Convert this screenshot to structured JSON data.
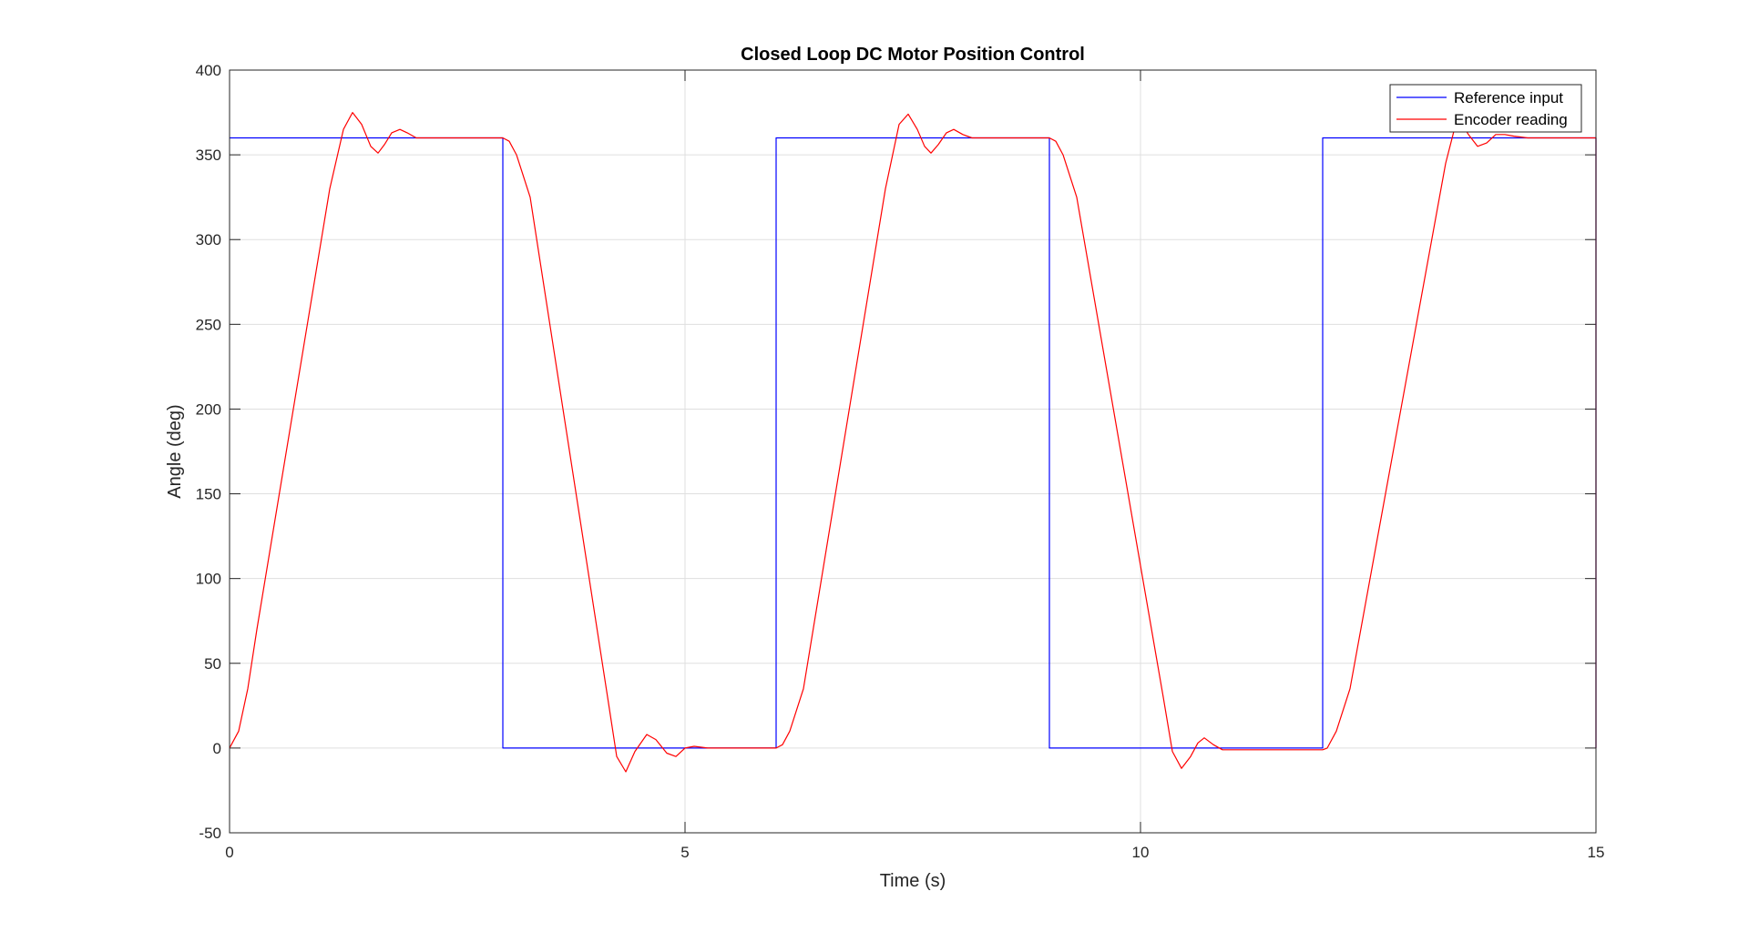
{
  "chart_data": {
    "type": "line",
    "title": "Closed Loop DC Motor Position Control",
    "xlabel": "Time (s)",
    "ylabel": "Angle (deg)",
    "xlim": [
      0,
      15
    ],
    "ylim": [
      -50,
      400
    ],
    "xticks": [
      0,
      5,
      10,
      15
    ],
    "yticks": [
      -50,
      0,
      50,
      100,
      150,
      200,
      250,
      300,
      350,
      400
    ],
    "grid": true,
    "legend_position": "top-right",
    "series": [
      {
        "name": "Reference input",
        "color": "#0000ff",
        "x": [
          0,
          3,
          3,
          6,
          6,
          9,
          9,
          12,
          12,
          15,
          15
        ],
        "y": [
          360,
          360,
          0,
          0,
          360,
          360,
          0,
          0,
          360,
          360,
          0
        ]
      },
      {
        "name": "Encoder reading",
        "color": "#ff0000",
        "x": [
          0,
          0.1,
          0.2,
          0.3,
          1.1,
          1.25,
          1.35,
          1.45,
          1.55,
          1.63,
          1.7,
          1.78,
          1.87,
          1.95,
          2.05,
          2.15,
          2.3,
          3.0,
          3.07,
          3.15,
          3.3,
          4.15,
          4.25,
          4.35,
          4.45,
          4.58,
          4.68,
          4.8,
          4.9,
          5.0,
          5.1,
          5.25,
          6.0,
          6.07,
          6.15,
          6.3,
          7.2,
          7.35,
          7.45,
          7.55,
          7.63,
          7.7,
          7.78,
          7.87,
          7.95,
          8.05,
          8.15,
          8.3,
          9.0,
          9.07,
          9.15,
          9.3,
          10.25,
          10.35,
          10.45,
          10.55,
          10.63,
          10.7,
          10.8,
          10.9,
          11.0,
          11.1,
          12.0,
          12.05,
          12.15,
          12.3,
          13.35,
          13.45,
          13.52,
          13.6,
          13.7,
          13.8,
          13.9,
          14.0,
          14.1,
          14.25,
          15.0,
          15.0
        ],
        "y": [
          0,
          10,
          35,
          70,
          330,
          365,
          375,
          368,
          355,
          351,
          356,
          363,
          365,
          363,
          360,
          360,
          360,
          360,
          358,
          350,
          325,
          30,
          -5,
          -14,
          -2,
          8,
          5,
          -3,
          -5,
          0,
          1,
          0,
          0,
          2,
          10,
          35,
          330,
          368,
          374,
          365,
          355,
          351,
          356,
          363,
          365,
          362,
          360,
          360,
          360,
          358,
          350,
          325,
          30,
          -2,
          -12,
          -5,
          3,
          6,
          2,
          -1,
          -1,
          -1,
          -1,
          0,
          10,
          35,
          345,
          366,
          369,
          362,
          355,
          357,
          362,
          362,
          361,
          360,
          360,
          0
        ]
      }
    ]
  }
}
